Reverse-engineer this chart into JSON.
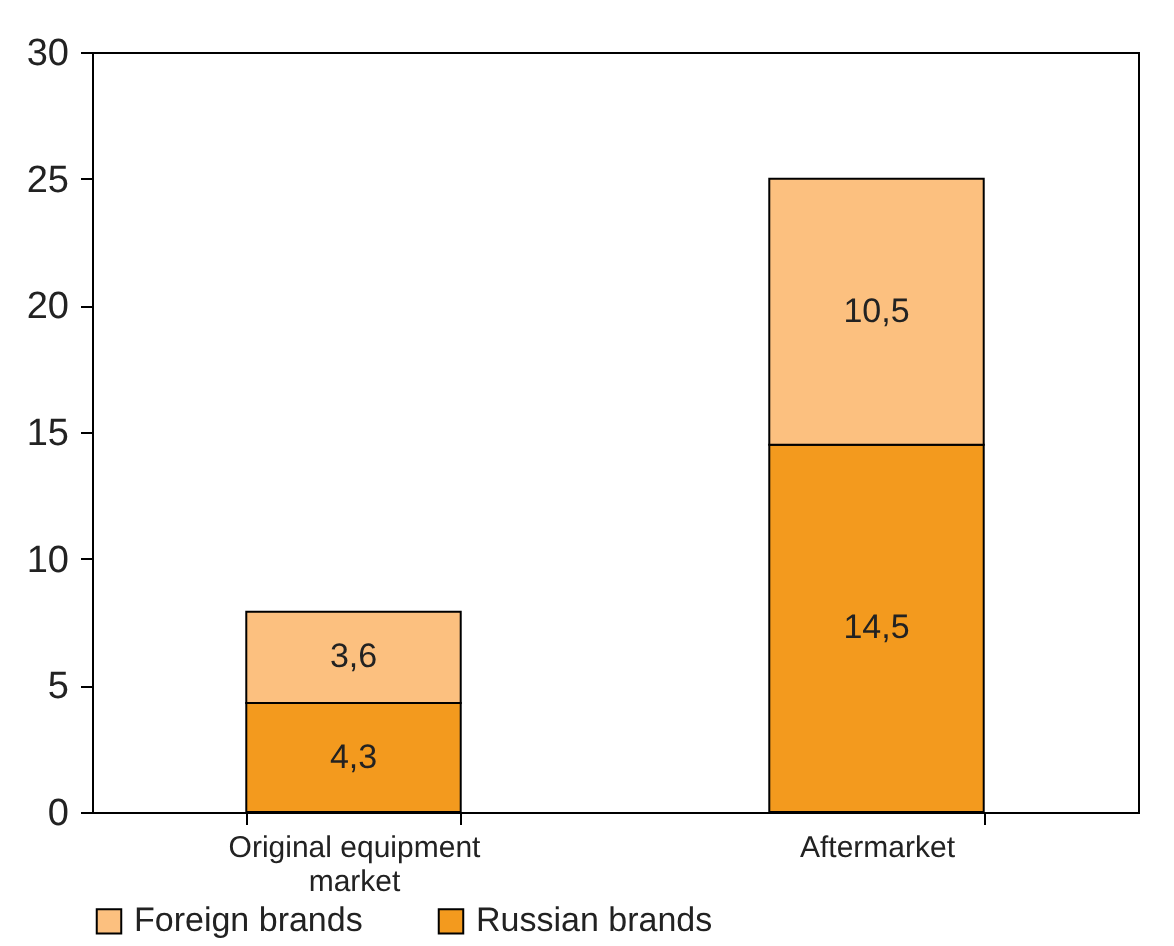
{
  "chart_data": {
    "type": "bar",
    "stacked": true,
    "categories": [
      "Original equipment market",
      "Aftermarket"
    ],
    "series": [
      {
        "name": "Russian brands",
        "color": "#f39a1e",
        "values": [
          4.3,
          14.5
        ],
        "value_labels": [
          "4,3",
          "14,5"
        ]
      },
      {
        "name": "Foreign brands",
        "color": "#fcc07f",
        "values": [
          3.6,
          10.5
        ],
        "value_labels": [
          "3,6",
          "10,5"
        ]
      }
    ],
    "ylim": [
      0,
      30
    ],
    "yticks": [
      0,
      5,
      10,
      15,
      20,
      25,
      30
    ],
    "grid": false,
    "legend": "bottom"
  }
}
